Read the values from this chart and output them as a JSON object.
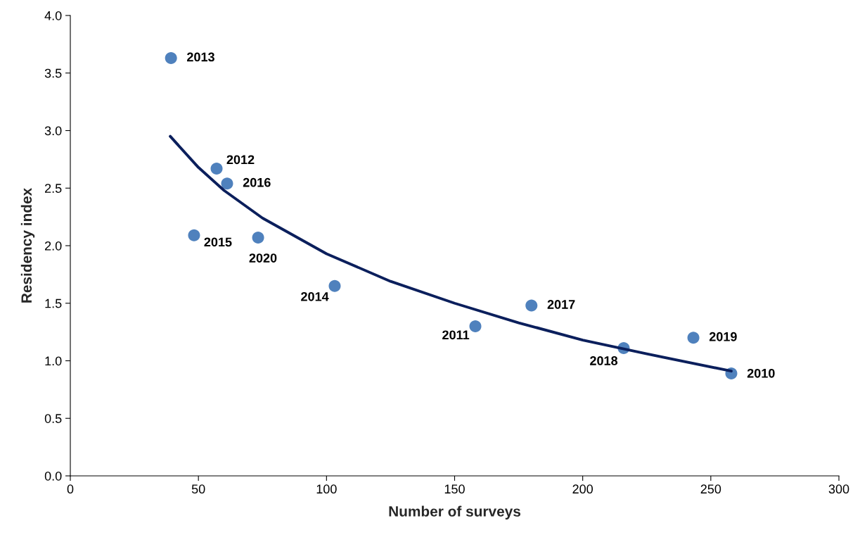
{
  "chart_data": {
    "type": "scatter",
    "xlabel": "Number of surveys",
    "ylabel": "Residency index",
    "xlim": [
      0,
      300
    ],
    "xticks": [
      0,
      50,
      100,
      150,
      200,
      250,
      300
    ],
    "ylim": [
      0,
      4.0
    ],
    "yticks": [
      {
        "value": 0,
        "label": "0.0"
      },
      {
        "value": 0.5,
        "label": "0.5"
      },
      {
        "value": 1,
        "label": "1.0"
      },
      {
        "value": 1.5,
        "label": "1.5"
      },
      {
        "value": 2,
        "label": "2.0"
      },
      {
        "value": 2.5,
        "label": "2.5"
      },
      {
        "value": 3,
        "label": "3.0"
      },
      {
        "value": 3.5,
        "label": "3.5"
      },
      {
        "value": 4,
        "label": "4.0"
      }
    ],
    "grid": false,
    "legend": false,
    "series": [
      {
        "color": "#4f81bd",
        "marker": "circle",
        "x": [
          39.3,
          57.1,
          61.2,
          48.3,
          73.3,
          103.2,
          158.1,
          180,
          216,
          243.2,
          258
        ],
        "values": [
          3.63,
          2.67,
          2.54,
          2.09,
          2.07,
          1.65,
          1.3,
          1.48,
          1.11,
          1.2,
          0.89
        ]
      },
      {
        "type": "line",
        "color": "#0b1f5c",
        "line_style": "solid",
        "x": [
          39,
          50,
          60,
          75,
          100,
          125,
          150,
          175,
          200,
          225,
          258
        ],
        "values": [
          2.95,
          2.68,
          2.48,
          2.24,
          1.93,
          1.69,
          1.5,
          1.33,
          1.18,
          1.06,
          0.91
        ]
      }
    ],
    "annotations": [
      {
        "text": "2013",
        "x": 39.3,
        "y": 3.63
      },
      {
        "text": "2012",
        "x": 57.1,
        "y": 2.67
      },
      {
        "text": "2016",
        "x": 61.2,
        "y": 2.54
      },
      {
        "text": "2015",
        "x": 48.3,
        "y": 2.09
      },
      {
        "text": "2020",
        "x": 73.3,
        "y": 2.07
      },
      {
        "text": "2014",
        "x": 103.2,
        "y": 1.65
      },
      {
        "text": "2011",
        "x": 158.1,
        "y": 1.3
      },
      {
        "text": "2017",
        "x": 180,
        "y": 1.48
      },
      {
        "text": "2018",
        "x": 216,
        "y": 1.11
      },
      {
        "text": "2019",
        "x": 243.2,
        "y": 1.2
      },
      {
        "text": "2010",
        "x": 258,
        "y": 0.89
      }
    ]
  }
}
